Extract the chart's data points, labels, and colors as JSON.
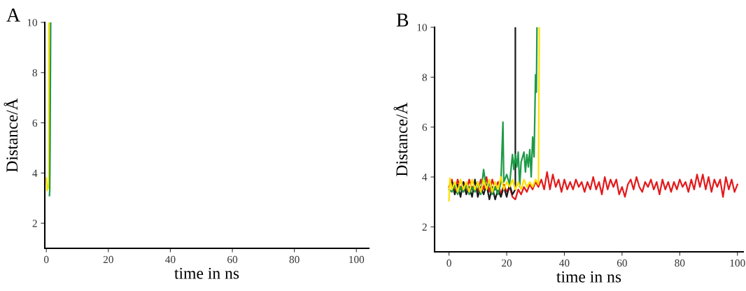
{
  "chart_data": [
    {
      "type": "line",
      "xlabel": "time in ns",
      "ylabel": "Distance/Å",
      "annotations": [
        "A"
      ],
      "xlim": [
        -0.5,
        104
      ],
      "ylim": [
        1,
        10
      ],
      "xticks": [
        0,
        20,
        40,
        60,
        80,
        100
      ],
      "yticks": [
        2,
        4,
        6,
        8,
        10
      ],
      "grid": false,
      "legend": false,
      "series": [
        {
          "color": "#ffe000",
          "x": [
            0,
            0.3,
            0.5,
            0.7,
            0.8,
            0.8
          ],
          "values": [
            3.8,
            3.3,
            3.5,
            3.4,
            3.8,
            10
          ]
        },
        {
          "color": "#1e9a48",
          "x": [
            1.0,
            1.1,
            1.2,
            1.4
          ],
          "values": [
            3.1,
            3.3,
            5.0,
            10
          ]
        }
      ]
    },
    {
      "type": "line",
      "xlabel": "time in ns",
      "ylabel": "Distance/Å",
      "annotations": [
        "B"
      ],
      "xlim": [
        -5,
        102
      ],
      "ylim": [
        1,
        10
      ],
      "xticks": [
        0,
        20,
        40,
        60,
        80,
        100
      ],
      "yticks": [
        2,
        4,
        6,
        8,
        10
      ],
      "grid": false,
      "legend": false,
      "series": [
        {
          "color": "#e31a1c",
          "x": [
            0,
            1,
            2,
            3,
            4,
            5,
            6,
            7,
            8,
            9,
            10,
            11,
            12,
            13,
            14,
            15,
            16,
            17,
            18,
            19,
            20,
            21,
            22,
            23,
            24,
            25,
            26,
            27,
            28,
            29,
            30,
            31,
            32,
            33,
            34,
            35,
            36,
            37,
            38,
            39,
            40,
            41,
            42,
            43,
            44,
            45,
            46,
            47,
            48,
            49,
            50,
            51,
            52,
            53,
            54,
            55,
            56,
            57,
            58,
            59,
            60,
            61,
            62,
            63,
            64,
            65,
            66,
            67,
            68,
            69,
            70,
            71,
            72,
            73,
            74,
            75,
            76,
            77,
            78,
            79,
            80,
            81,
            82,
            83,
            84,
            85,
            86,
            87,
            88,
            89,
            90,
            91,
            92,
            93,
            94,
            95,
            96,
            97,
            98,
            99,
            100
          ],
          "values": [
            3.6,
            3.9,
            3.4,
            3.9,
            3.5,
            3.8,
            3.4,
            3.9,
            3.5,
            3.8,
            3.4,
            3.9,
            3.5,
            4.0,
            3.4,
            3.9,
            3.5,
            3.8,
            3.3,
            3.7,
            3.4,
            3.6,
            3.2,
            3.1,
            3.5,
            3.3,
            3.6,
            3.4,
            3.7,
            3.5,
            3.8,
            3.6,
            3.9,
            3.5,
            4.2,
            3.5,
            4.1,
            3.6,
            3.9,
            3.4,
            3.9,
            3.5,
            3.8,
            3.5,
            3.9,
            3.6,
            3.8,
            3.4,
            3.8,
            3.5,
            4.0,
            3.5,
            3.8,
            3.3,
            4.0,
            3.5,
            3.9,
            3.6,
            3.9,
            3.3,
            3.6,
            3.2,
            3.7,
            3.9,
            3.5,
            4.0,
            3.6,
            3.4,
            3.8,
            3.6,
            3.9,
            3.5,
            3.8,
            3.3,
            3.9,
            3.5,
            3.8,
            3.4,
            3.8,
            3.5,
            3.9,
            3.6,
            3.8,
            3.4,
            3.9,
            3.5,
            4.1,
            3.6,
            4.1,
            3.5,
            4.0,
            3.4,
            3.9,
            3.6,
            3.9,
            3.2,
            4.0,
            3.5,
            3.9,
            3.4,
            3.7
          ]
        },
        {
          "color": "#1a1a1a",
          "x": [
            1,
            2,
            3,
            4,
            5,
            6,
            7,
            8,
            9,
            10,
            11,
            12,
            13,
            14,
            15,
            16,
            17,
            18,
            19,
            20,
            21,
            22,
            23,
            23
          ],
          "values": [
            3.8,
            3.3,
            3.7,
            3.2,
            3.8,
            3.3,
            3.6,
            3.2,
            3.9,
            3.2,
            3.6,
            3.3,
            3.7,
            3.1,
            3.6,
            3.1,
            3.5,
            3.2,
            3.6,
            3.2,
            3.7,
            3.3,
            3.5,
            10
          ]
        },
        {
          "color": "#1e9a48",
          "x": [
            0,
            1,
            2,
            3,
            4,
            5,
            6,
            7,
            8,
            9,
            10,
            11,
            12,
            13,
            14,
            15,
            16,
            17,
            18,
            18.7,
            19,
            20,
            21,
            22,
            22.5,
            23,
            23.5,
            24,
            24.5,
            25,
            26,
            26.5,
            27,
            27.5,
            28,
            28.5,
            29,
            29.5,
            30,
            30.3,
            30.5
          ],
          "values": [
            3.5,
            3.4,
            3.7,
            3.3,
            3.6,
            3.4,
            3.7,
            3.3,
            3.6,
            3.4,
            3.8,
            3.3,
            4.3,
            3.5,
            3.8,
            3.3,
            3.6,
            3.3,
            3.8,
            6.2,
            3.8,
            4.1,
            3.7,
            4.9,
            4.3,
            4.9,
            4.4,
            5.0,
            3.6,
            4.6,
            5.0,
            4.2,
            4.9,
            4.4,
            5.1,
            4.0,
            5.6,
            4.8,
            8.1,
            7.4,
            10
          ]
        },
        {
          "color": "#ffe000",
          "x": [
            0,
            0.3,
            1,
            2,
            3,
            4,
            5,
            6,
            7,
            8,
            9,
            10,
            11,
            12,
            13,
            14,
            15,
            16,
            17,
            18,
            19,
            20,
            21,
            22,
            23,
            24,
            25,
            26,
            27,
            28,
            29,
            30,
            31,
            31.3
          ],
          "values": [
            3.05,
            3.95,
            3.5,
            3.8,
            3.4,
            3.9,
            3.5,
            3.8,
            3.4,
            3.9,
            3.5,
            3.8,
            3.4,
            3.9,
            3.5,
            3.9,
            3.4,
            3.8,
            3.5,
            4.0,
            3.5,
            3.8,
            3.6,
            3.9,
            3.5,
            3.8,
            3.5,
            3.9,
            3.6,
            3.8,
            3.6,
            3.9,
            3.7,
            10
          ]
        }
      ]
    }
  ]
}
